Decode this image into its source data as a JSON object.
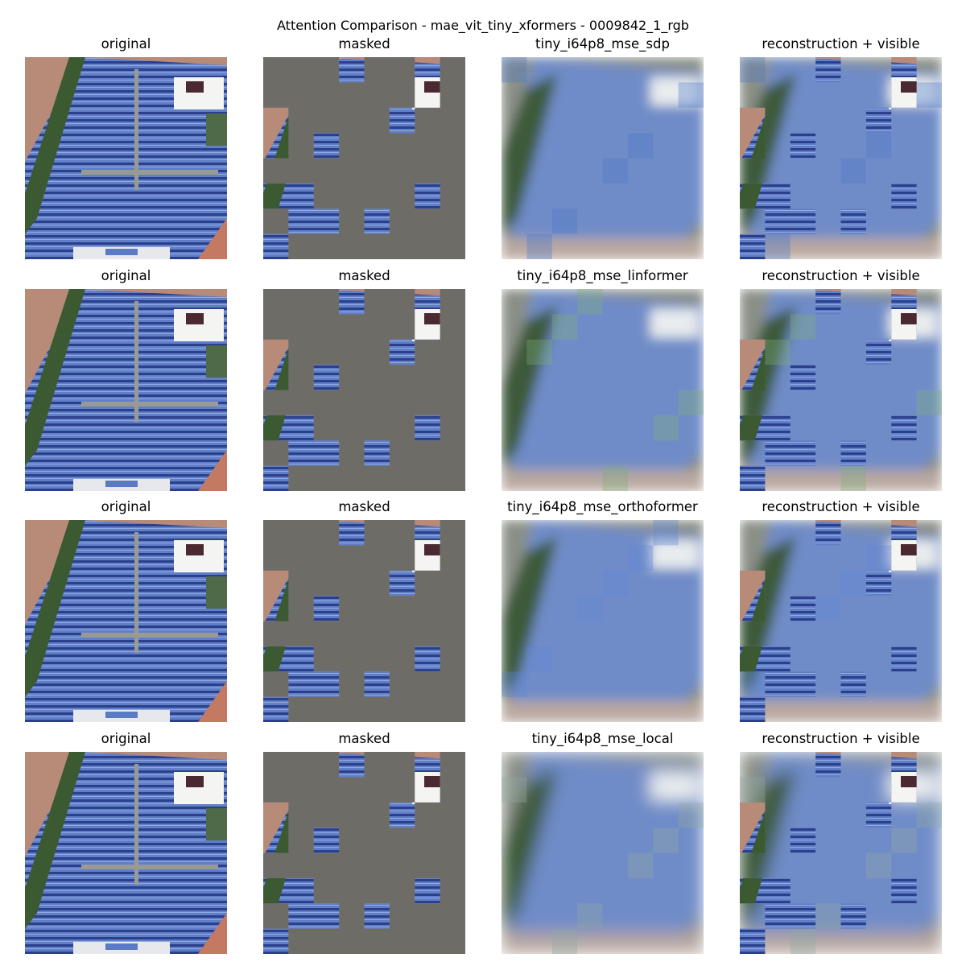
{
  "figure": {
    "title": "Attention Comparison - mae_vit_tiny_xformers - 0009842_1_rgb"
  },
  "rows": [
    {
      "model": "tiny_i64p8_mse_sdp",
      "panels": [
        "original",
        "masked",
        "tiny_i64p8_mse_sdp",
        "reconstruction + visible"
      ]
    },
    {
      "model": "tiny_i64p8_mse_linformer",
      "panels": [
        "original",
        "masked",
        "tiny_i64p8_mse_linformer",
        "reconstruction + visible"
      ]
    },
    {
      "model": "tiny_i64p8_mse_orthoformer",
      "panels": [
        "original",
        "masked",
        "tiny_i64p8_mse_orthoformer",
        "reconstruction + visible"
      ]
    },
    {
      "model": "tiny_i64p8_mse_local",
      "panels": [
        "original",
        "masked",
        "tiny_i64p8_mse_local",
        "reconstruction + visible"
      ]
    }
  ],
  "visible_patches": [
    [
      3,
      0
    ],
    [
      6,
      0
    ],
    [
      6,
      1
    ],
    [
      0,
      2
    ],
    [
      5,
      2
    ],
    [
      0,
      3
    ],
    [
      2,
      3
    ],
    [
      0,
      5
    ],
    [
      1,
      5
    ],
    [
      6,
      5
    ],
    [
      1,
      6
    ],
    [
      2,
      6
    ],
    [
      4,
      6
    ],
    [
      0,
      7
    ]
  ],
  "patch_grid": 8,
  "colors": {
    "mask_gray": "#6d6c66",
    "panel_blue": "#5a7bc4",
    "panel_dark_blue": "#2a3f88",
    "soil": "#b88a78",
    "vegetation": "#3b5a32",
    "road": "#9a9a94",
    "building_white": "#f4f4f2"
  },
  "icons": {
    "image_panel": "satellite-image-panel",
    "masked_panel": "masked-image-panel",
    "reconstruction_panel": "reconstruction-image-panel",
    "composite_panel": "reconstruction-plus-visible-panel"
  }
}
